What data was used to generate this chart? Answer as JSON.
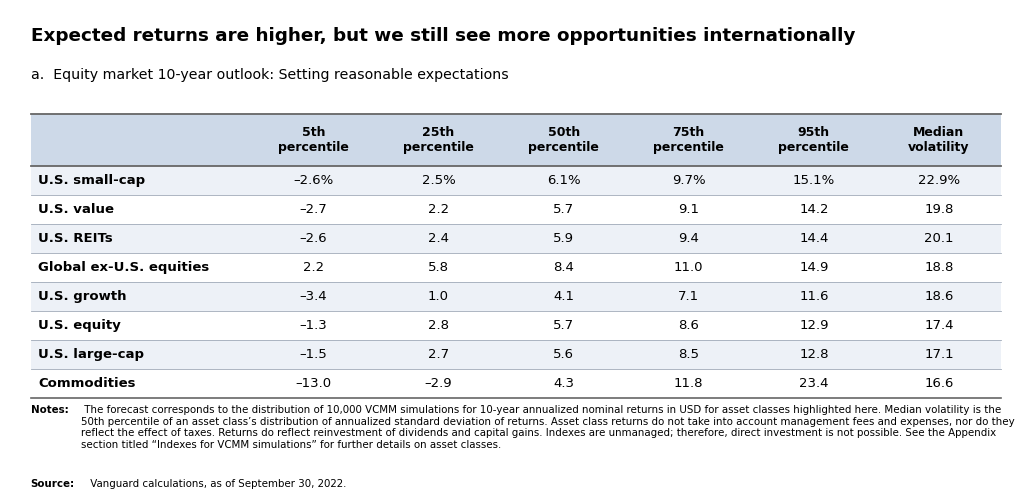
{
  "title": "Expected returns are higher, but we still see more opportunities internationally",
  "subtitle": "a.  Equity market 10-year outlook: Setting reasonable expectations",
  "columns": [
    "5th\npercentile",
    "25th\npercentile",
    "50th\npercentile",
    "75th\npercentile",
    "95th\npercentile",
    "Median\nvolatility"
  ],
  "rows": [
    {
      "label": "U.S. small-cap",
      "values": [
        "–2.6%",
        "2.5%",
        "6.1%",
        "9.7%",
        "15.1%",
        "22.9%"
      ]
    },
    {
      "label": "U.S. value",
      "values": [
        "–2.7",
        "2.2",
        "5.7",
        "9.1",
        "14.2",
        "19.8"
      ]
    },
    {
      "label": "U.S. REITs",
      "values": [
        "–2.6",
        "2.4",
        "5.9",
        "9.4",
        "14.4",
        "20.1"
      ]
    },
    {
      "label": "Global ex-U.S. equities",
      "values": [
        "2.2",
        "5.8",
        "8.4",
        "11.0",
        "14.9",
        "18.8"
      ]
    },
    {
      "label": "U.S. growth",
      "values": [
        "–3.4",
        "1.0",
        "4.1",
        "7.1",
        "11.6",
        "18.6"
      ]
    },
    {
      "label": "U.S. equity",
      "values": [
        "–1.3",
        "2.8",
        "5.7",
        "8.6",
        "12.9",
        "17.4"
      ]
    },
    {
      "label": "U.S. large-cap",
      "values": [
        "–1.5",
        "2.7",
        "5.6",
        "8.5",
        "12.8",
        "17.1"
      ]
    },
    {
      "label": "Commodities",
      "values": [
        "–13.0",
        "–2.9",
        "4.3",
        "11.8",
        "23.4",
        "16.6"
      ]
    }
  ],
  "notes_bold": "Notes:",
  "notes_text": " The forecast corresponds to the distribution of 10,000 VCMM simulations for 10-year annualized nominal returns in USD for asset classes highlighted here. Median volatility is the 50th percentile of an asset class’s distribution of annualized standard deviation of returns. Asset class returns do not take into account management fees and expenses, nor do they reflect the effect of taxes. Returns do reflect reinvestment of dividends and capital gains. Indexes are unmanaged; therefore, direct investment is not possible. See the Appendix section titled “Indexes for VCMM simulations” for further details on asset classes.",
  "source_bold": "Source:",
  "source_text": " Vanguard calculations, as of September 30, 2022.",
  "bg_color": "#ffffff",
  "header_bg": "#cdd9e8",
  "row_bg_odd": "#edf1f7",
  "row_bg_even": "#ffffff",
  "line_color_heavy": "#888888",
  "line_color_light": "#bbcада"
}
